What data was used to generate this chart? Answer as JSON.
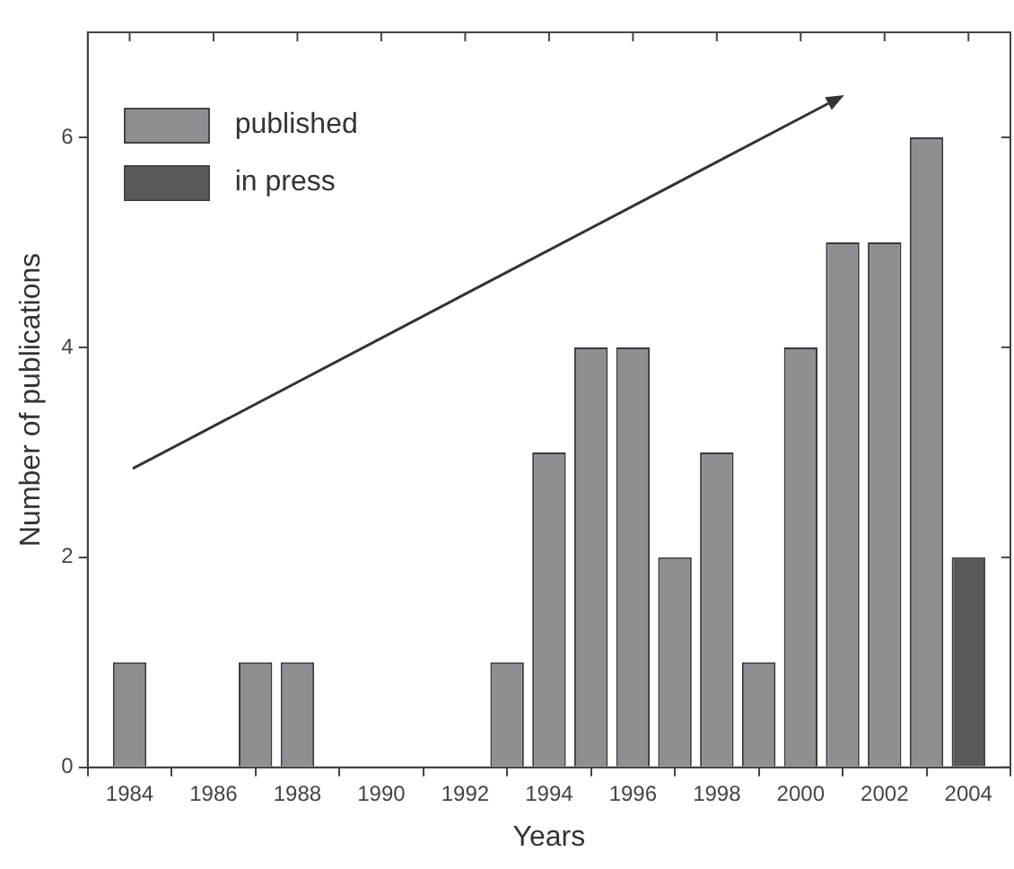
{
  "chart_data": {
    "type": "bar",
    "xlabel": "Years",
    "ylabel": "Number of publications",
    "series": [
      {
        "name": "published",
        "color": "#8e8f93",
        "x": [
          1984,
          1987,
          1988,
          1993,
          1994,
          1995,
          1996,
          1997,
          1998,
          1999,
          2000,
          2001,
          2002,
          2003
        ],
        "values": [
          1,
          1,
          1,
          1,
          3,
          4,
          4,
          2,
          3,
          1,
          4,
          5,
          5,
          6
        ]
      },
      {
        "name": "in press",
        "color": "#58595b",
        "x": [
          2004
        ],
        "values": [
          2
        ]
      }
    ],
    "xlim": [
      1983,
      2005
    ],
    "xticks": [
      1984,
      1986,
      1988,
      1990,
      1992,
      1994,
      1996,
      1998,
      2000,
      2002,
      2004
    ],
    "ylim": [
      0,
      7
    ],
    "yticks": [
      0,
      2,
      4,
      6
    ],
    "grid": false,
    "legend": "top left"
  }
}
